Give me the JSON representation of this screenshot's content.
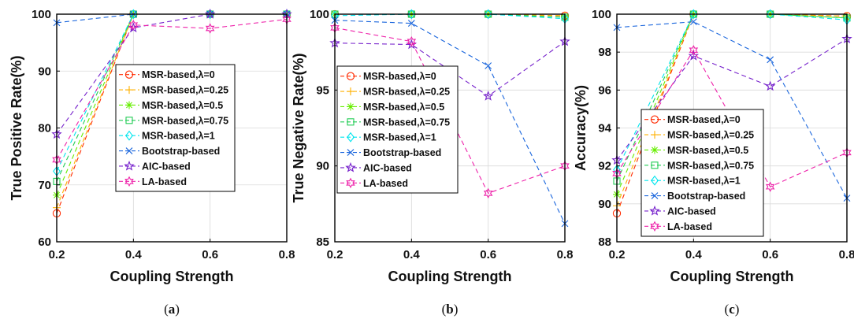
{
  "figure": {
    "captions": [
      "(a)",
      "(b)",
      "(c)"
    ]
  },
  "styles": {
    "series": [
      {
        "color": "#ff2a00",
        "marker": "circle"
      },
      {
        "color": "#ffb000",
        "marker": "plus"
      },
      {
        "color": "#66ee00",
        "marker": "asterisk"
      },
      {
        "color": "#22cc55",
        "marker": "square"
      },
      {
        "color": "#00e5ee",
        "marker": "diamond"
      },
      {
        "color": "#1a66dd",
        "marker": "x"
      },
      {
        "color": "#7722cc",
        "marker": "star"
      },
      {
        "color": "#ee22aa",
        "marker": "hexagram"
      }
    ]
  },
  "chart_data": [
    {
      "type": "line",
      "xlabel": "Coupling Strength",
      "ylabel": "True Positive Rate(%)",
      "xlim": [
        0.2,
        0.8
      ],
      "ylim": [
        60,
        100
      ],
      "x_ticks": [
        "0.2",
        "0.4",
        "0.6",
        "0.8"
      ],
      "y_ticks": [
        "60",
        "70",
        "80",
        "90",
        "100"
      ],
      "grid": true,
      "legend": "center",
      "x": [
        0.2,
        0.4,
        0.6,
        0.8
      ],
      "series": [
        {
          "name": "MSR-based,λ=0",
          "values": [
            65,
            100,
            100,
            100
          ]
        },
        {
          "name": "MSR-based,λ=0.25",
          "values": [
            66,
            100,
            100,
            100
          ]
        },
        {
          "name": "MSR-based,λ=0.5",
          "values": [
            68.2,
            100,
            100,
            100
          ]
        },
        {
          "name": "MSR-based,λ=0.75",
          "values": [
            70.6,
            100,
            100,
            100
          ]
        },
        {
          "name": "MSR-based,λ=1",
          "values": [
            72.4,
            100,
            100,
            100
          ]
        },
        {
          "name": "Bootstrap-based",
          "values": [
            98.5,
            100,
            100,
            100
          ]
        },
        {
          "name": "AIC-based",
          "values": [
            78.9,
            97.6,
            100,
            100
          ]
        },
        {
          "name": "LA-based",
          "values": [
            74.4,
            98.1,
            97.5,
            99.1
          ]
        }
      ]
    },
    {
      "type": "line",
      "xlabel": "Coupling Strength",
      "ylabel": "True Negative Rate(%)",
      "xlim": [
        0.2,
        0.8
      ],
      "ylim": [
        85,
        100
      ],
      "x_ticks": [
        "0.2",
        "0.4",
        "0.6",
        "0.8"
      ],
      "y_ticks": [
        "85",
        "90",
        "95",
        "100"
      ],
      "grid": true,
      "legend": "center",
      "x": [
        0.2,
        0.4,
        0.6,
        0.8
      ],
      "series": [
        {
          "name": "MSR-based,λ=0",
          "values": [
            100,
            100,
            100,
            99.9
          ]
        },
        {
          "name": "MSR-based,λ=0.25",
          "values": [
            100,
            100,
            100,
            99.9
          ]
        },
        {
          "name": "MSR-based,λ=0.5",
          "values": [
            100,
            100,
            100,
            99.8
          ]
        },
        {
          "name": "MSR-based,λ=0.75",
          "values": [
            100,
            100,
            100,
            99.8
          ]
        },
        {
          "name": "MSR-based,λ=1",
          "values": [
            99.9,
            100,
            100,
            99.7
          ]
        },
        {
          "name": "Bootstrap-based",
          "values": [
            99.6,
            99.4,
            96.6,
            86.2
          ]
        },
        {
          "name": "AIC-based",
          "values": [
            98.1,
            98.0,
            94.6,
            98.2
          ]
        },
        {
          "name": "LA-based",
          "values": [
            99.1,
            98.2,
            88.2,
            90.0
          ]
        }
      ]
    },
    {
      "type": "line",
      "xlabel": "Coupling Strength",
      "ylabel": "Accuracy(%)",
      "xlim": [
        0.2,
        0.8
      ],
      "ylim": [
        88,
        100
      ],
      "x_ticks": [
        "0.2",
        "0.4",
        "0.6",
        "0.8"
      ],
      "y_ticks": [
        "88",
        "90",
        "92",
        "94",
        "96",
        "98",
        "100"
      ],
      "grid": true,
      "legend": "bottom-left",
      "x": [
        0.2,
        0.4,
        0.6,
        0.8
      ],
      "series": [
        {
          "name": "MSR-based,λ=0",
          "values": [
            89.5,
            100,
            100,
            99.9
          ]
        },
        {
          "name": "MSR-based,λ=0.25",
          "values": [
            89.9,
            100,
            100,
            99.9
          ]
        },
        {
          "name": "MSR-based,λ=0.5",
          "values": [
            90.5,
            100,
            100,
            99.8
          ]
        },
        {
          "name": "MSR-based,λ=0.75",
          "values": [
            91.2,
            100,
            100,
            99.8
          ]
        },
        {
          "name": "MSR-based,λ=1",
          "values": [
            91.8,
            100,
            100,
            99.7
          ]
        },
        {
          "name": "Bootstrap-based",
          "values": [
            99.3,
            99.6,
            97.6,
            90.3
          ]
        },
        {
          "name": "AIC-based",
          "values": [
            92.3,
            97.8,
            96.2,
            98.7
          ]
        },
        {
          "name": "LA-based",
          "values": [
            91.6,
            98.1,
            90.9,
            92.7
          ]
        }
      ]
    }
  ]
}
